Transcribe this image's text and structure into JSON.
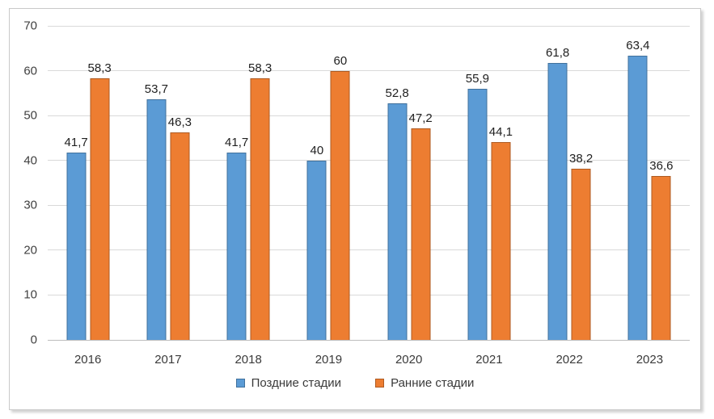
{
  "chart_data": {
    "type": "bar",
    "title": "",
    "categories": [
      "2016",
      "2017",
      "2018",
      "2019",
      "2020",
      "2021",
      "2022",
      "2023"
    ],
    "series": [
      {
        "name": "Поздние стадии",
        "color": "#5B9BD5",
        "border_color": "#41719C",
        "values": [
          41.7,
          53.7,
          41.7,
          40,
          52.8,
          55.9,
          61.8,
          63.4
        ],
        "labels": [
          "41,7",
          "53,7",
          "41,7",
          "40",
          "52,8",
          "55,9",
          "61,8",
          "63,4"
        ]
      },
      {
        "name": "Ранние стадии",
        "color": "#ED7D31",
        "border_color": "#AE5A21",
        "values": [
          58.3,
          46.3,
          58.3,
          60,
          47.2,
          44.1,
          38.2,
          36.6
        ],
        "labels": [
          "58,3",
          "46,3",
          "58,3",
          "60",
          "47,2",
          "44,1",
          "38,2",
          "36,6"
        ]
      }
    ],
    "y_axis": {
      "min": 0,
      "max": 70,
      "step": 10,
      "tick_labels": [
        "0",
        "10",
        "20",
        "30",
        "40",
        "50",
        "60",
        "70"
      ]
    },
    "xlabel": "",
    "ylabel": "",
    "grid": true,
    "legend_position": "bottom-center",
    "colors": {
      "gridline": "#d9d9d9",
      "axis_line": "#bdbdbd",
      "tick_text": "#404040",
      "data_label_text": "#1f1f1f",
      "frame_border": "#c9c9c9",
      "background": "#ffffff"
    }
  }
}
